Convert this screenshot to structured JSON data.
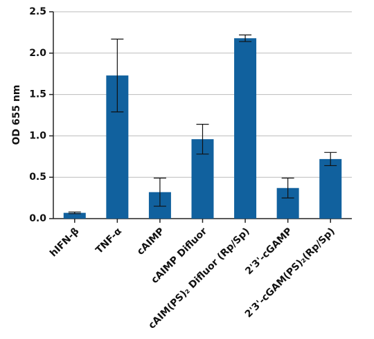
{
  "chart_data": {
    "type": "bar",
    "y_label": "OD 655 nm",
    "categories": [
      "hIFN-β",
      "TNF-α",
      "cAIMP",
      "cAIMP Difluor",
      "cAIM(PS)₂ Difluor (Rp/Sp)",
      "2'3'-cGAMP",
      "2'3'-cGAM(PS)₂(Rp/Sp)"
    ],
    "values": [
      0.07,
      1.73,
      0.32,
      0.96,
      2.18,
      0.37,
      0.72
    ],
    "errors": [
      0.01,
      0.44,
      0.17,
      0.18,
      0.04,
      0.12,
      0.08
    ],
    "color": "#11619e",
    "ylim": [
      0,
      2.5
    ],
    "yticks": [
      {
        "value": 0,
        "label": "0.0"
      },
      0.5,
      {
        "value": 1,
        "label": "1.0"
      },
      1.5,
      {
        "value": 2,
        "label": "2.0"
      },
      2.5
    ],
    "grid": true
  }
}
